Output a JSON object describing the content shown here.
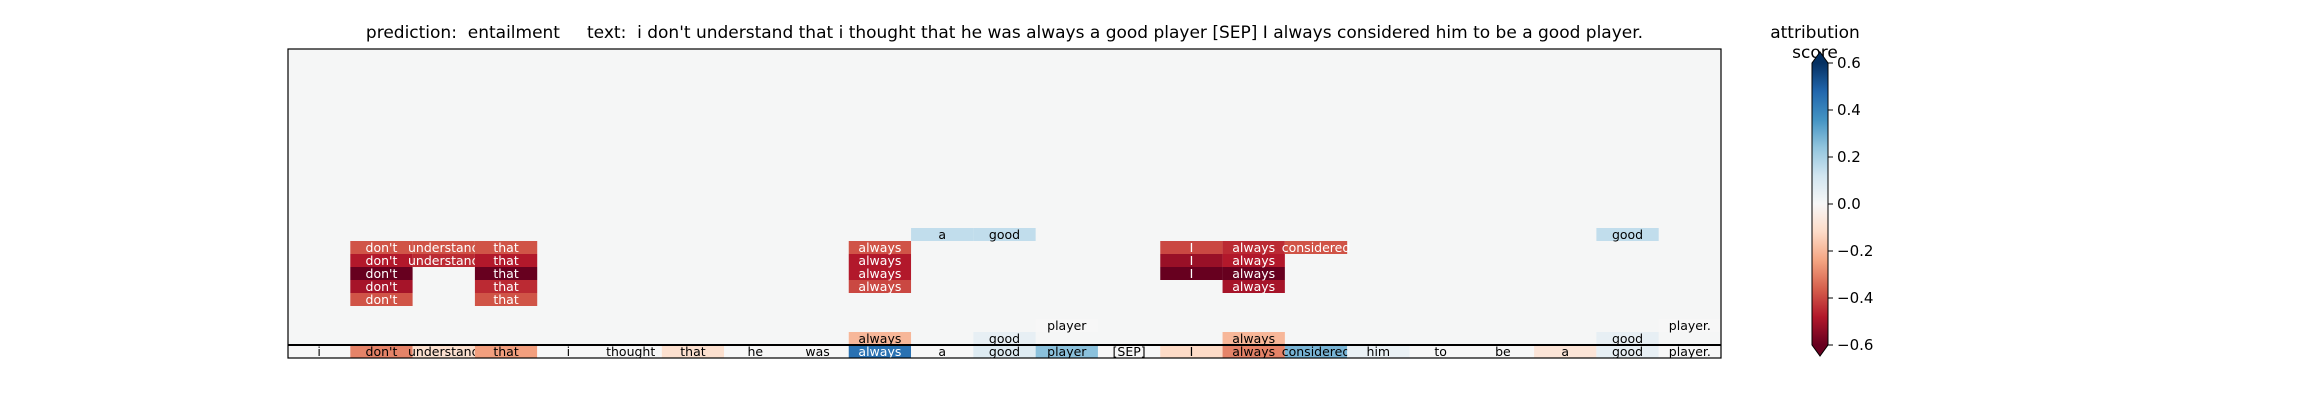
{
  "title": {
    "prediction_label": "prediction:",
    "prediction_value": "entailment",
    "text_label": "text:",
    "text_value": "i don't understand that i thought that he was always a good player [SEP] I always considered him to be a good player."
  },
  "chart_data": {
    "type": "heatmap",
    "tokens": [
      "i",
      "don't",
      "understand",
      "that",
      "i",
      "thought",
      "that",
      "he",
      "was",
      "always",
      "a",
      "good",
      "player",
      "[SEP]",
      "I",
      "always",
      "considered",
      "him",
      "to",
      "be",
      "a",
      "good",
      "player."
    ],
    "base_scores": [
      0.0,
      -0.3,
      -0.1,
      -0.25,
      0.0,
      0.0,
      -0.1,
      0.0,
      0.0,
      0.45,
      0.0,
      0.08,
      0.25,
      0.0,
      -0.12,
      -0.3,
      0.28,
      0.04,
      0.0,
      0.0,
      -0.08,
      0.05,
      0.0
    ],
    "levels": [
      {
        "level": 1,
        "cells": [
          {
            "i": 9,
            "token": "always",
            "score": -0.2
          },
          {
            "i": 11,
            "token": "good",
            "score": 0.05
          },
          {
            "i": 15,
            "token": "always",
            "score": -0.2
          },
          {
            "i": 21,
            "token": "good",
            "score": 0.05
          }
        ]
      },
      {
        "level": 2,
        "cells": [
          {
            "i": 12,
            "token": "player",
            "score": 0.0
          },
          {
            "i": 22,
            "token": "player.",
            "score": 0.0
          }
        ]
      },
      {
        "level": 4,
        "cells": [
          {
            "i": 1,
            "token": "don't",
            "score": -0.38
          },
          {
            "i": 3,
            "token": "that",
            "score": -0.38
          }
        ]
      },
      {
        "level": 5,
        "cells": [
          {
            "i": 1,
            "token": "don't",
            "score": -0.5
          },
          {
            "i": 3,
            "token": "that",
            "score": -0.45
          },
          {
            "i": 9,
            "token": "always",
            "score": -0.4
          },
          {
            "i": 15,
            "token": "always",
            "score": -0.5
          }
        ]
      },
      {
        "level": 6,
        "cells": [
          {
            "i": 1,
            "token": "don't",
            "score": -0.6
          },
          {
            "i": 3,
            "token": "that",
            "score": -0.6
          },
          {
            "i": 9,
            "token": "always",
            "score": -0.48
          },
          {
            "i": 14,
            "token": "I",
            "score": -0.6
          },
          {
            "i": 15,
            "token": "always",
            "score": -0.6
          }
        ]
      },
      {
        "level": 7,
        "cells": [
          {
            "i": 1,
            "token": "don't",
            "score": -0.48
          },
          {
            "i": 2,
            "token": "understand",
            "score": -0.45
          },
          {
            "i": 3,
            "token": "that",
            "score": -0.48
          },
          {
            "i": 9,
            "token": "always",
            "score": -0.48
          },
          {
            "i": 14,
            "token": "I",
            "score": -0.52
          },
          {
            "i": 15,
            "token": "always",
            "score": -0.48
          }
        ]
      },
      {
        "level": 8,
        "cells": [
          {
            "i": 1,
            "token": "don't",
            "score": -0.38
          },
          {
            "i": 2,
            "token": "understand",
            "score": -0.38
          },
          {
            "i": 3,
            "token": "that",
            "score": -0.38
          },
          {
            "i": 9,
            "token": "always",
            "score": -0.38
          },
          {
            "i": 14,
            "token": "I",
            "score": -0.4
          },
          {
            "i": 15,
            "token": "always",
            "score": -0.45
          },
          {
            "i": 16,
            "token": "considered",
            "score": -0.38
          }
        ]
      },
      {
        "level": 9,
        "cells": [
          {
            "i": 10,
            "token": "a",
            "score": 0.15
          },
          {
            "i": 11,
            "token": "good",
            "score": 0.15
          },
          {
            "i": 21,
            "token": "good",
            "score": 0.15
          }
        ]
      }
    ],
    "colorbar": {
      "label": "attribution score",
      "min": -0.6,
      "max": 0.6,
      "ticks": [
        "0.6",
        "0.4",
        "0.2",
        "0.0",
        "−0.2",
        "−0.4",
        "−0.6"
      ],
      "tick_values": [
        0.6,
        0.4,
        0.2,
        0.0,
        -0.2,
        -0.4,
        -0.6
      ],
      "colormap": "RdBu",
      "extend": "both"
    },
    "background_color": "#f5f6f6",
    "grid": false
  }
}
